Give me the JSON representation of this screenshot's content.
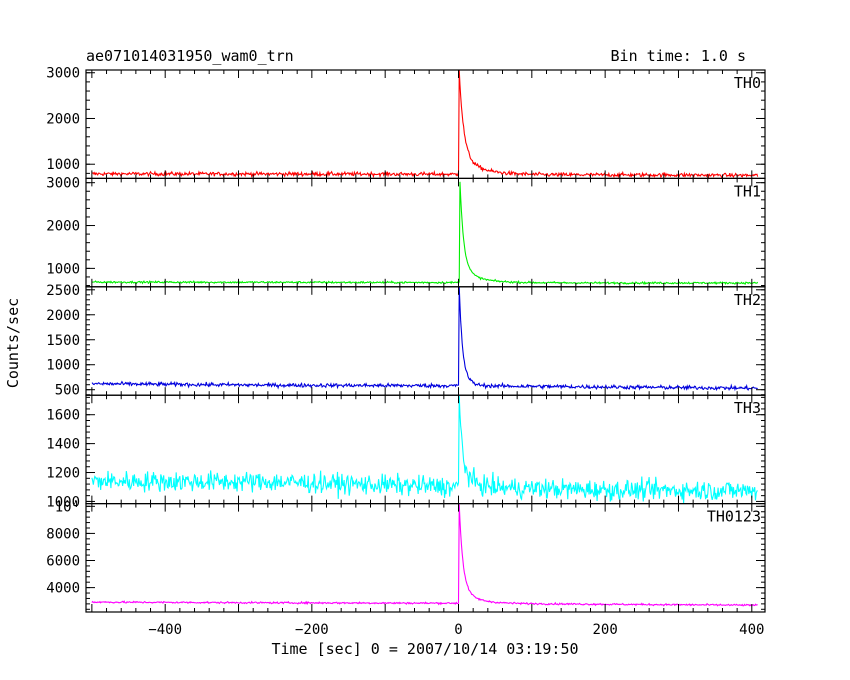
{
  "header": {
    "title": "ae071014031950_wam0_trn",
    "bin_time": "Bin time: 1.0 s"
  },
  "chart_data": {
    "type": "line",
    "xlabel": "Time [sec] 0 = 2007/10/14 03:19:50",
    "ylabel": "Counts/sec",
    "xlim": [
      -508,
      418
    ],
    "x_ticks": [
      -400,
      -200,
      0,
      200,
      400
    ],
    "grid": false,
    "panels": [
      {
        "name": "TH0",
        "color": "#ff0000",
        "ylim": [
          690,
          3060
        ],
        "y_ticks": [
          1000,
          2000,
          3000
        ],
        "y_tick_labels": [
          "1000",
          "2000",
          "3000"
        ],
        "baseline": [
          [
            -500,
            790
          ],
          [
            -100,
            785
          ],
          [
            0,
            780
          ],
          [
            100,
            770
          ],
          [
            300,
            765
          ],
          [
            408,
            755
          ]
        ],
        "noise": 28,
        "peak": {
          "t": 1,
          "value": 3060,
          "decay": 6,
          "tail_amp": 420,
          "tail_decay": 25
        },
        "points": [
          [
            -500,
            790
          ],
          [
            0,
            790
          ],
          [
            1,
            3060
          ],
          [
            5,
            2350
          ],
          [
            10,
            1350
          ],
          [
            15,
            1050
          ],
          [
            30,
            870
          ],
          [
            100,
            780
          ],
          [
            408,
            750
          ]
        ]
      },
      {
        "name": "TH1",
        "color": "#00ee00",
        "ylim": [
          570,
          3100
        ],
        "y_ticks": [
          1000,
          2000,
          3000
        ],
        "y_tick_labels": [
          "1000",
          "2000",
          "3000"
        ],
        "baseline": [
          [
            -500,
            680
          ],
          [
            0,
            670
          ],
          [
            200,
            660
          ],
          [
            408,
            660
          ]
        ],
        "noise": 15,
        "peak": {
          "t": 2,
          "value": 3020,
          "decay": 5,
          "tail_amp": 350,
          "tail_decay": 22
        },
        "points": [
          [
            -500,
            680
          ],
          [
            0,
            675
          ],
          [
            2,
            3020
          ],
          [
            6,
            2350
          ],
          [
            12,
            1300
          ],
          [
            20,
            900
          ],
          [
            40,
            720
          ],
          [
            408,
            660
          ]
        ]
      },
      {
        "name": "TH2",
        "color": "#0000dd",
        "ylim": [
          390,
          2560
        ],
        "y_ticks": [
          500,
          1000,
          1500,
          2000,
          2500
        ],
        "y_tick_labels": [
          "500",
          "1000",
          "1500",
          "2000",
          "2500"
        ],
        "baseline": [
          [
            -500,
            620
          ],
          [
            -250,
            590
          ],
          [
            0,
            580
          ],
          [
            200,
            555
          ],
          [
            408,
            530
          ]
        ],
        "noise": 26,
        "peak": {
          "t": 1,
          "value": 2560,
          "decay": 4,
          "tail_amp": 550,
          "tail_decay": 8
        },
        "points": [
          [
            -500,
            620
          ],
          [
            0,
            580
          ],
          [
            1,
            2560
          ],
          [
            4,
            1800
          ],
          [
            6,
            1250
          ],
          [
            10,
            900
          ],
          [
            30,
            620
          ],
          [
            408,
            530
          ]
        ]
      },
      {
        "name": "TH3",
        "color": "#00ffff",
        "ylim": [
          985,
          1735
        ],
        "y_ticks": [
          1000,
          1200,
          1400,
          1600
        ],
        "y_tick_labels": [
          "1000",
          "1200",
          "1400",
          "1600"
        ],
        "baseline": [
          [
            -500,
            1140
          ],
          [
            -250,
            1135
          ],
          [
            0,
            1100
          ],
          [
            200,
            1080
          ],
          [
            408,
            1075
          ]
        ],
        "noise": 48,
        "peak": {
          "t": 1,
          "value": 1730,
          "decay": 4,
          "tail_amp": 150,
          "tail_decay": 14
        },
        "points": [
          [
            -500,
            1140
          ],
          [
            0,
            1100
          ],
          [
            1,
            1730
          ],
          [
            5,
            1500
          ],
          [
            10,
            1320
          ],
          [
            30,
            1150
          ],
          [
            408,
            1075
          ]
        ]
      },
      {
        "name": "TH0123",
        "color": "#ff00ff",
        "ylim": [
          2200,
          10200
        ],
        "y_ticks": [
          4000,
          6000,
          8000,
          10000
        ],
        "y_tick_labels": [
          "4000",
          "6000",
          "8000",
          "10⁴"
        ],
        "baseline": [
          [
            -500,
            2930
          ],
          [
            -250,
            2880
          ],
          [
            0,
            2850
          ],
          [
            200,
            2770
          ],
          [
            408,
            2700
          ]
        ],
        "noise": 45,
        "peak": {
          "t": 1,
          "value": 10150,
          "decay": 5,
          "tail_amp": 1100,
          "tail_decay": 20
        },
        "points": [
          [
            -500,
            2930
          ],
          [
            0,
            2850
          ],
          [
            1,
            10150
          ],
          [
            5,
            7600
          ],
          [
            10,
            5000
          ],
          [
            20,
            3600
          ],
          [
            40,
            3000
          ],
          [
            408,
            2700
          ]
        ]
      }
    ]
  }
}
